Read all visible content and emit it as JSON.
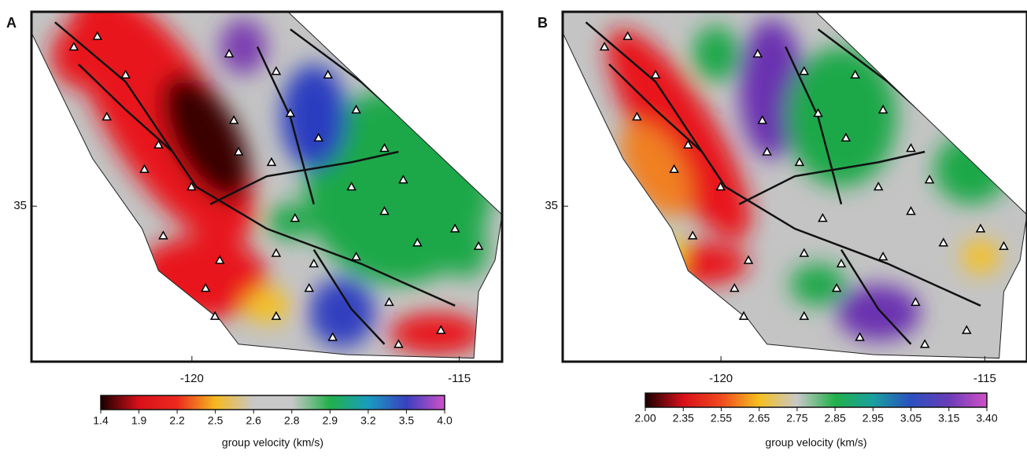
{
  "panels": [
    {
      "label": "A",
      "xlim": [
        -123,
        -114.2
      ],
      "ylim": [
        32.6,
        38
      ],
      "xticks": [
        -120,
        -115
      ],
      "yticks": [
        35
      ],
      "colorbar": {
        "title": "group velocity (km/s)",
        "ticks": [
          1.4,
          1.9,
          2.2,
          2.5,
          2.6,
          2.8,
          2.9,
          3.2,
          3.5,
          {
            "value": 4,
            "label": "4.0"
          }
        ],
        "colors": [
          "#1a0000",
          "#d8101a",
          "#ec2a1e",
          "#f5b820",
          "#c8c8c8",
          "#c8c8c8",
          "#22b04a",
          "#1a9cc0",
          "#3a40c0",
          "#d050c8"
        ]
      }
    },
    {
      "label": "B",
      "xlim": [
        -123,
        -114.2
      ],
      "ylim": [
        32.6,
        38
      ],
      "xticks": [
        -120,
        -115
      ],
      "yticks": [
        35
      ],
      "colorbar": {
        "title": "group velocity (km/s)",
        "ticks": [
          {
            "value": 2,
            "label": "2.00"
          },
          2.35,
          2.55,
          2.65,
          2.75,
          2.85,
          2.95,
          3.05,
          3.15,
          {
            "value": 3.4,
            "label": "3.40"
          }
        ],
        "colors": [
          "#1a0000",
          "#d8101a",
          "#f04a1e",
          "#f5c020",
          "#c8c8c8",
          "#22b04a",
          "#1aa0a0",
          "#2a50c0",
          "#6a3cb8",
          "#d050c8"
        ]
      }
    }
  ]
}
